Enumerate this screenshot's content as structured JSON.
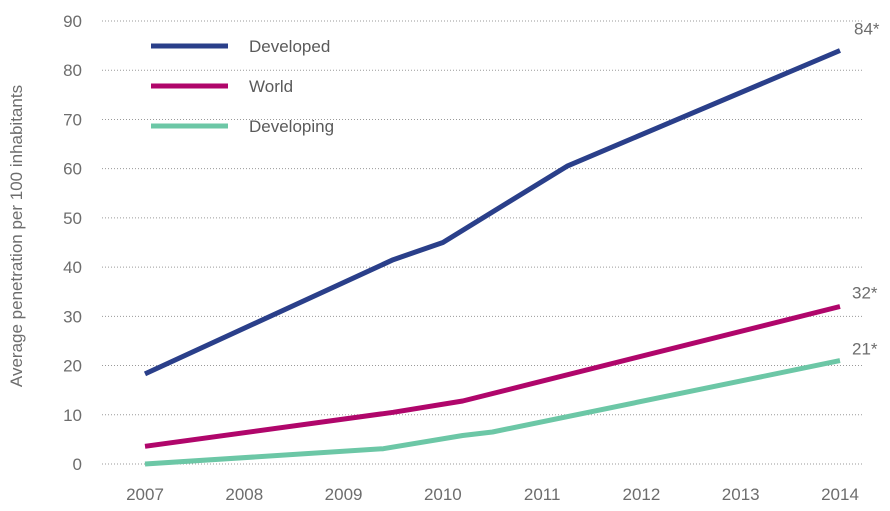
{
  "chart_data": {
    "type": "line",
    "title": "",
    "xlabel": "",
    "ylabel": "Average penetration per 100 inhabitants",
    "ylim": [
      0,
      90
    ],
    "xlim": [
      2007,
      2014
    ],
    "y_ticks": [
      "0",
      "10",
      "20",
      "30",
      "40",
      "50",
      "60",
      "70",
      "80",
      "90"
    ],
    "x_ticks": [
      "2007",
      "2008",
      "2009",
      "2010",
      "2011",
      "2012",
      "2013",
      "2014"
    ],
    "grid": "horizontal dotted",
    "legend_position": "top-left",
    "series": [
      {
        "name": "Developed",
        "color": "#2a3f8a",
        "end_label": "84*",
        "points": [
          [
            2007,
            18.3
          ],
          [
            2009.5,
            41.5
          ],
          [
            2010,
            45
          ],
          [
            2011.25,
            60.5
          ],
          [
            2014,
            84
          ]
        ]
      },
      {
        "name": "World",
        "color": "#b0066b",
        "end_label": "32*",
        "points": [
          [
            2007,
            3.6
          ],
          [
            2009.5,
            10.5
          ],
          [
            2010.2,
            12.8
          ],
          [
            2014,
            32
          ]
        ]
      },
      {
        "name": "Developing",
        "color": "#6cc7a6",
        "end_label": "21*",
        "points": [
          [
            2007,
            0
          ],
          [
            2009.4,
            3.1
          ],
          [
            2010.2,
            5.8
          ],
          [
            2010.5,
            6.5
          ],
          [
            2014,
            21
          ]
        ]
      }
    ]
  }
}
